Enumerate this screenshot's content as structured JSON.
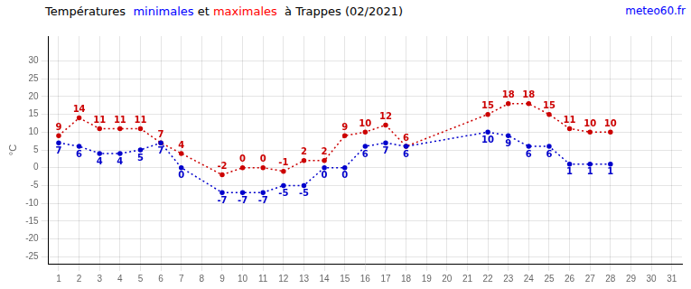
{
  "chart_data": {
    "type": "line",
    "title": [
      {
        "text": "Températures  ",
        "color": "black"
      },
      {
        "text": "minimales",
        "color": "blue"
      },
      {
        "text": " et ",
        "color": "black"
      },
      {
        "text": "maximales",
        "color": "red"
      },
      {
        "text": "  à Trappes (02/2021)",
        "color": "black"
      }
    ],
    "annotations": [
      {
        "text": "meteo60.fr",
        "color": "blue"
      }
    ],
    "y_label": "°C",
    "x": [
      1,
      2,
      3,
      4,
      5,
      6,
      7,
      9,
      10,
      11,
      12,
      13,
      14,
      15,
      16,
      17,
      18,
      22,
      23,
      24,
      25,
      26,
      27,
      28
    ],
    "series": [
      {
        "color": "#0000cc",
        "line_style": "dotted",
        "marker": "point",
        "values": [
          7,
          6,
          4,
          4,
          5,
          7,
          0,
          -7,
          -7,
          -7,
          -5,
          -5,
          0,
          0,
          6,
          7,
          6,
          10,
          9,
          6,
          6,
          1,
          1,
          1
        ]
      },
      {
        "color": "#cc0000",
        "line_style": "dotted",
        "marker": "point",
        "values": [
          9,
          14,
          11,
          11,
          11,
          7,
          4,
          -2,
          0,
          0,
          -1,
          2,
          2,
          9,
          10,
          12,
          6,
          15,
          18,
          18,
          15,
          11,
          10,
          10
        ]
      }
    ],
    "xlim": [
      0.5,
      31.5
    ],
    "xticks": [
      1,
      2,
      3,
      4,
      5,
      6,
      7,
      8,
      9,
      10,
      11,
      12,
      13,
      14,
      15,
      16,
      17,
      18,
      19,
      20,
      21,
      22,
      23,
      24,
      25,
      26,
      27,
      28,
      29,
      30,
      31
    ],
    "ylim": [
      -27,
      37
    ],
    "yticks": [
      -25,
      -20,
      -15,
      -10,
      -5,
      0,
      5,
      10,
      15,
      20,
      25,
      30
    ],
    "grid": true,
    "data_labels": true
  }
}
